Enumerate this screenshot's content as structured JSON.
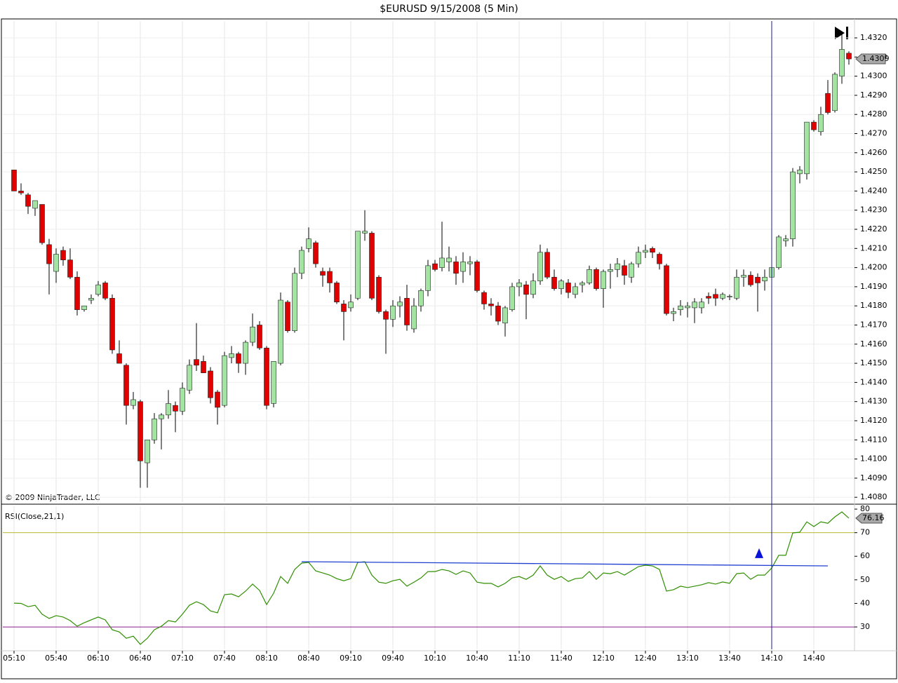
{
  "chart_data": [
    {
      "type": "candlestick",
      "title": "$EURUSD  9/15/2008 (5 Min)",
      "annotation": "© 2009 NinjaTrader, LLC",
      "up_color": "#a3e4a3",
      "down_color": "#e00000",
      "ylim": [
        1.40775,
        1.43288
      ],
      "yticks": [
        {
          "value": 1.408,
          "label": "1.4080"
        },
        {
          "value": 1.409,
          "label": "1.4090"
        },
        {
          "value": 1.41,
          "label": "1.4100"
        },
        {
          "value": 1.411,
          "label": "1.4110"
        },
        {
          "value": 1.412,
          "label": "1.4120"
        },
        {
          "value": 1.413,
          "label": "1.4130"
        },
        {
          "value": 1.414,
          "label": "1.4140"
        },
        {
          "value": 1.415,
          "label": "1.4150"
        },
        {
          "value": 1.416,
          "label": "1.4160"
        },
        {
          "value": 1.417,
          "label": "1.4170"
        },
        {
          "value": 1.418,
          "label": "1.4180"
        },
        {
          "value": 1.419,
          "label": "1.4190"
        },
        {
          "value": 1.42,
          "label": "1.4200"
        },
        {
          "value": 1.421,
          "label": "1.4210"
        },
        {
          "value": 1.422,
          "label": "1.4220"
        },
        {
          "value": 1.423,
          "label": "1.4230"
        },
        {
          "value": 1.424,
          "label": "1.4240"
        },
        {
          "value": 1.425,
          "label": "1.4250"
        },
        {
          "value": 1.426,
          "label": "1.4260"
        },
        {
          "value": 1.427,
          "label": "1.4270"
        },
        {
          "value": 1.428,
          "label": "1.4280"
        },
        {
          "value": 1.429,
          "label": "1.4290"
        },
        {
          "value": 1.43,
          "label": "1.4300"
        },
        {
          "value": 1.431,
          "label": "1.4310"
        },
        {
          "value": 1.432,
          "label": "1.4320"
        }
      ],
      "grid": true,
      "open": [
        1.4251,
        1.424,
        1.4238,
        1.4231,
        1.4233,
        1.4212,
        1.4198,
        1.4209,
        1.4204,
        1.4195,
        1.4178,
        1.4183,
        1.4186,
        1.4192,
        1.4184,
        1.4155,
        1.4149,
        1.4128,
        1.413,
        1.4098,
        1.411,
        1.4121,
        1.4123,
        1.4128,
        1.4125,
        1.4136,
        1.4152,
        1.4151,
        1.4146,
        1.4135,
        1.4128,
        1.4153,
        1.4155,
        1.415,
        1.4161,
        1.417,
        1.4158,
        1.4129,
        1.415,
        1.4182,
        1.4167,
        1.4197,
        1.421,
        1.4213,
        1.4198,
        1.4198,
        1.4192,
        1.4181,
        1.4179,
        1.4184,
        1.4218,
        1.4218,
        1.4195,
        1.4177,
        1.4173,
        1.418,
        1.4184,
        1.4168,
        1.418,
        1.4188,
        1.4202,
        1.42,
        1.4203,
        1.4203,
        1.4198,
        1.4202,
        1.4203,
        1.4187,
        1.4181,
        1.418,
        1.4171,
        1.4178,
        1.419,
        1.4191,
        1.4186,
        1.4193,
        1.4208,
        1.4195,
        1.4189,
        1.4192,
        1.4186,
        1.4191,
        1.4192,
        1.4199,
        1.4189,
        1.4198,
        1.4199,
        1.4201,
        1.4195,
        1.4202,
        1.4208,
        1.421,
        1.4207,
        1.4201,
        1.4176,
        1.4178,
        1.4179,
        1.4179,
        1.4179,
        1.4185,
        1.4186,
        1.4184,
        1.4185,
        1.4184,
        1.4195,
        1.4196,
        1.4195,
        1.4193,
        1.4195,
        1.42,
        1.4214,
        1.4215,
        1.4249,
        1.4249,
        1.4276,
        1.4271,
        1.4291,
        1.4282,
        1.43,
        1.4312
      ],
      "high": [
        1.4251,
        1.4244,
        1.4239,
        1.4235,
        1.4233,
        1.4215,
        1.421,
        1.4211,
        1.421,
        1.4198,
        1.418,
        1.4186,
        1.4193,
        1.4193,
        1.4186,
        1.4162,
        1.415,
        1.4135,
        1.4131,
        1.411,
        1.4124,
        1.4124,
        1.4136,
        1.413,
        1.414,
        1.4152,
        1.4171,
        1.4154,
        1.4148,
        1.4136,
        1.4156,
        1.4159,
        1.4156,
        1.4162,
        1.4176,
        1.4172,
        1.4159,
        1.415,
        1.4187,
        1.4183,
        1.42,
        1.4211,
        1.4221,
        1.4214,
        1.42,
        1.42,
        1.4193,
        1.4183,
        1.4186,
        1.4219,
        1.423,
        1.4219,
        1.4196,
        1.4178,
        1.4183,
        1.4185,
        1.4191,
        1.4184,
        1.4189,
        1.4204,
        1.4204,
        1.4224,
        1.4211,
        1.4206,
        1.4208,
        1.4206,
        1.4204,
        1.4188,
        1.4184,
        1.4182,
        1.418,
        1.4192,
        1.4194,
        1.4193,
        1.4197,
        1.4212,
        1.421,
        1.4199,
        1.4194,
        1.4194,
        1.4192,
        1.4193,
        1.4201,
        1.42,
        1.4199,
        1.4202,
        1.4205,
        1.4204,
        1.4203,
        1.4211,
        1.4212,
        1.4211,
        1.4208,
        1.4202,
        1.4179,
        1.4183,
        1.4182,
        1.4184,
        1.4184,
        1.4187,
        1.4189,
        1.4187,
        1.4186,
        1.4199,
        1.4199,
        1.4198,
        1.4197,
        1.4199,
        1.4201,
        1.4217,
        1.4217,
        1.4252,
        1.4253,
        1.4276,
        1.4277,
        1.4284,
        1.4298,
        1.4302,
        1.4322,
        1.4313
      ],
      "low": [
        1.424,
        1.4238,
        1.4228,
        1.4227,
        1.4212,
        1.4186,
        1.4192,
        1.4201,
        1.4194,
        1.4175,
        1.4177,
        1.4181,
        1.4185,
        1.4183,
        1.4155,
        1.415,
        1.4118,
        1.4126,
        1.4085,
        1.4085,
        1.4108,
        1.4105,
        1.4121,
        1.4114,
        1.4123,
        1.4134,
        1.4146,
        1.4145,
        1.4129,
        1.4118,
        1.4127,
        1.415,
        1.4145,
        1.4144,
        1.4159,
        1.4157,
        1.4126,
        1.4127,
        1.4149,
        1.4166,
        1.4166,
        1.4194,
        1.4208,
        1.42,
        1.419,
        1.4187,
        1.4181,
        1.4162,
        1.4177,
        1.4183,
        1.4214,
        1.4183,
        1.4176,
        1.4155,
        1.4169,
        1.4174,
        1.4167,
        1.4166,
        1.4177,
        1.4185,
        1.4198,
        1.4198,
        1.4198,
        1.4191,
        1.4192,
        1.4196,
        1.4187,
        1.4178,
        1.4175,
        1.417,
        1.4164,
        1.4177,
        1.4185,
        1.4173,
        1.4184,
        1.4191,
        1.4194,
        1.4188,
        1.4186,
        1.4184,
        1.4184,
        1.4187,
        1.4191,
        1.4188,
        1.4179,
        1.4189,
        1.4195,
        1.4191,
        1.4192,
        1.42,
        1.4205,
        1.4205,
        1.4199,
        1.4175,
        1.4172,
        1.4175,
        1.4174,
        1.4171,
        1.4176,
        1.4181,
        1.418,
        1.4183,
        1.4183,
        1.4183,
        1.419,
        1.419,
        1.4177,
        1.4188,
        1.4194,
        1.4199,
        1.4211,
        1.4211,
        1.4244,
        1.4246,
        1.4271,
        1.4269,
        1.428,
        1.4281,
        1.4296,
        1.4306
      ],
      "close": [
        1.424,
        1.4239,
        1.4232,
        1.4235,
        1.4213,
        1.4202,
        1.4207,
        1.4204,
        1.4195,
        1.4178,
        1.418,
        1.4184,
        1.4191,
        1.4184,
        1.4157,
        1.415,
        1.4128,
        1.4131,
        1.4099,
        1.411,
        1.4121,
        1.4123,
        1.4129,
        1.4125,
        1.4137,
        1.4149,
        1.4149,
        1.4145,
        1.4132,
        1.4127,
        1.4154,
        1.4155,
        1.415,
        1.4161,
        1.4169,
        1.4158,
        1.4128,
        1.4151,
        1.4183,
        1.4167,
        1.4197,
        1.4209,
        1.4215,
        1.4202,
        1.4196,
        1.4192,
        1.4182,
        1.4177,
        1.4182,
        1.4219,
        1.4219,
        1.4184,
        1.4177,
        1.4173,
        1.418,
        1.4182,
        1.417,
        1.418,
        1.4188,
        1.4201,
        1.4199,
        1.4205,
        1.4205,
        1.4197,
        1.4203,
        1.4203,
        1.4188,
        1.4181,
        1.418,
        1.4172,
        1.4179,
        1.419,
        1.4192,
        1.4186,
        1.4193,
        1.4208,
        1.4195,
        1.4189,
        1.4193,
        1.4187,
        1.419,
        1.4192,
        1.4199,
        1.4189,
        1.4198,
        1.4199,
        1.4202,
        1.4196,
        1.4202,
        1.4208,
        1.4209,
        1.4208,
        1.4202,
        1.4176,
        1.4177,
        1.418,
        1.418,
        1.4182,
        1.4182,
        1.4184,
        1.4184,
        1.4186,
        1.4185,
        1.4195,
        1.4196,
        1.4191,
        1.4192,
        1.4195,
        1.42,
        1.4216,
        1.4215,
        1.425,
        1.4251,
        1.4276,
        1.4272,
        1.428,
        1.4281,
        1.4301,
        1.4314,
        1.4309
      ]
    },
    {
      "type": "line",
      "title": "RSI(Close,21,1)",
      "categories": [
        "05:10",
        null,
        null,
        null,
        null,
        null,
        "05:40",
        null,
        null,
        null,
        null,
        null,
        "06:10",
        null,
        null,
        null,
        null,
        null,
        "06:40",
        null,
        null,
        null,
        null,
        null,
        "07:10",
        null,
        null,
        null,
        null,
        null,
        "07:40",
        null,
        null,
        null,
        null,
        null,
        "08:10",
        null,
        null,
        null,
        null,
        null,
        "08:40",
        null,
        null,
        null,
        null,
        null,
        "09:10",
        null,
        null,
        null,
        null,
        null,
        "09:40",
        null,
        null,
        null,
        null,
        null,
        "10:10",
        null,
        null,
        null,
        null,
        null,
        "10:40",
        null,
        null,
        null,
        null,
        null,
        "11:10",
        null,
        null,
        null,
        null,
        null,
        "11:40",
        null,
        null,
        null,
        null,
        null,
        "12:10",
        null,
        null,
        null,
        null,
        null,
        "12:40",
        null,
        null,
        null,
        null,
        null,
        "13:10",
        null,
        null,
        null,
        null,
        null,
        "13:40",
        null,
        null,
        null,
        null,
        null,
        "14:10",
        null,
        null,
        null,
        null,
        null,
        "14:40",
        null,
        null,
        null,
        null,
        null
      ],
      "ylim": [
        20.5,
        81.2
      ],
      "yticks": [
        30,
        40,
        50,
        60,
        70,
        80
      ],
      "grid": true,
      "series": [
        {
          "name": "RSI",
          "color": "#2f8f00",
          "values": [
            40.1,
            40,
            38.6,
            39.2,
            35.4,
            33.6,
            34.8,
            34.2,
            32.7,
            30.3,
            31.8,
            33,
            34.2,
            33,
            28.8,
            27.9,
            25.2,
            26.1,
            22.6,
            25.2,
            28.8,
            30.3,
            32.7,
            32.1,
            35.4,
            39.2,
            40.7,
            39.5,
            36.8,
            36,
            43.7,
            44,
            42.8,
            45.2,
            48.2,
            45.5,
            39.5,
            44.3,
            51.4,
            48.5,
            54.4,
            57.1,
            57.4,
            53.8,
            52.9,
            52,
            50.5,
            49.6,
            50.5,
            57.4,
            57.7,
            52,
            49,
            48.5,
            49.6,
            50.2,
            47.3,
            49,
            50.8,
            53.5,
            53.5,
            54.4,
            53.8,
            52.3,
            53.8,
            52.9,
            49,
            48.5,
            48.5,
            47,
            48.5,
            50.8,
            51.4,
            50.2,
            52,
            55.9,
            52,
            50.2,
            51.4,
            49.3,
            50.5,
            50.8,
            53.5,
            50.2,
            52.9,
            52.6,
            53.5,
            52,
            53.8,
            55.6,
            56.2,
            55.9,
            54.4,
            45.2,
            45.8,
            47.3,
            46.7,
            47.3,
            47.9,
            48.8,
            48.2,
            49.1,
            48.5,
            52.6,
            52.9,
            50.2,
            52,
            52,
            55,
            60.4,
            60.4,
            69.9,
            70.2,
            74.6,
            72.6,
            74.6,
            74,
            76.7,
            78.8,
            76.16
          ]
        }
      ],
      "reference_lines": [
        {
          "value": 70,
          "color": "#b8b830"
        },
        {
          "value": 30,
          "color": "#8b1a8b"
        }
      ],
      "trendline": {
        "x": [
          41,
          116
        ],
        "values": [
          57.7,
          55.9
        ],
        "color": "#1f3fd0"
      },
      "markers": [
        {
          "x": 106.5,
          "value": 61,
          "color": "#0a14d8"
        }
      ],
      "vline_x": 108,
      "vline_color": "#1a1a8c"
    }
  ]
}
